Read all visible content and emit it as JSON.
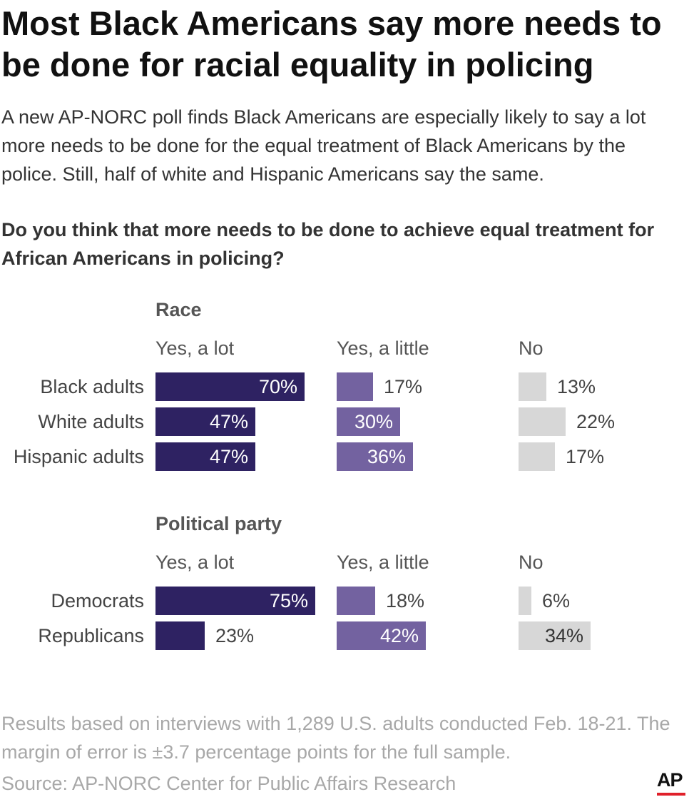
{
  "header": {
    "title": "Most Black Americans say more needs to be done for racial equality in policing",
    "subtitle": "A new AP-NORC poll finds Black Americans are especially likely to say a lot more needs to be done for the equal treatment of Black Americans by the police. Still, half of white and Hispanic Americans say the same.",
    "question": "Do you think that more needs to be done to achieve equal treatment for African Americans in policing?"
  },
  "colors": {
    "yes_a_lot": "#2e2262",
    "yes_a_little": "#7362a0",
    "no": "#d7d7d7"
  },
  "chart_data": {
    "type": "bar",
    "subtype": "small-multiple horizontal bars",
    "columns": [
      "Yes, a lot",
      "Yes, a little",
      "No"
    ],
    "panels": [
      {
        "name": "Race",
        "categories": [
          "Black adults",
          "White adults",
          "Hispanic adults"
        ],
        "series": [
          {
            "name": "Yes, a lot",
            "values": [
              70,
              47,
              47
            ],
            "labels": [
              "70%",
              "47%",
              "47%"
            ]
          },
          {
            "name": "Yes, a little",
            "values": [
              17,
              30,
              36
            ],
            "labels": [
              "17%",
              "30%",
              "36%"
            ]
          },
          {
            "name": "No",
            "values": [
              13,
              22,
              17
            ],
            "labels": [
              "13%",
              "22%",
              "17%"
            ]
          }
        ]
      },
      {
        "name": "Political party",
        "categories": [
          "Democrats",
          "Republicans"
        ],
        "series": [
          {
            "name": "Yes, a lot",
            "values": [
              75,
              23
            ],
            "labels": [
              "75%",
              "23%"
            ]
          },
          {
            "name": "Yes, a little",
            "values": [
              18,
              42
            ],
            "labels": [
              "18%",
              "42%"
            ]
          },
          {
            "name": "No",
            "values": [
              6,
              34
            ],
            "labels": [
              "6%",
              "34%"
            ]
          }
        ]
      }
    ]
  },
  "footer": {
    "note": "Results based on interviews with 1,289 U.S. adults conducted Feb. 18-21. The margin of error is ±3.7 percentage points for the full sample.",
    "source": "Source: AP-NORC Center for Public Affairs Research",
    "logo_text": "AP"
  }
}
